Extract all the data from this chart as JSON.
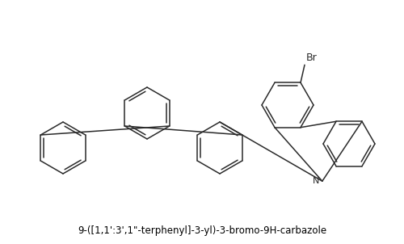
{
  "title": "9-([1,1':3',1\"-terphenyl]-3-yl)-3-bromo-9H-carbazole",
  "bg_color": "#ffffff",
  "line_color": "#2a2a2a",
  "text_color": "#000000",
  "title_fontsize": 8.5,
  "fig_width": 5.0,
  "fig_height": 3.02,
  "dpi": 100
}
